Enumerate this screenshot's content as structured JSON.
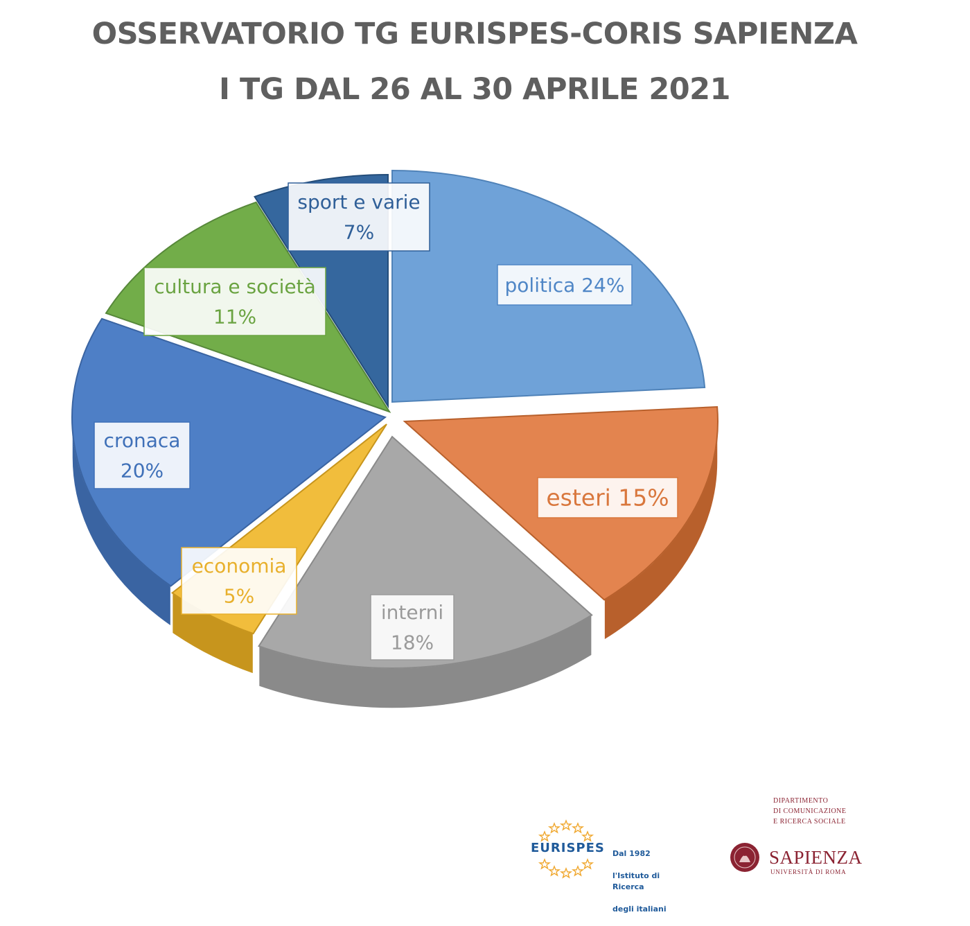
{
  "title": {
    "line1": "OSSERVATORIO TG EURISPES-CORIS SAPIENZA",
    "line2": "I TG DAL 26 AL 30 APRILE 2021"
  },
  "chart_data": {
    "type": "pie",
    "style": "3d-exploded",
    "unit": "%",
    "slices": [
      {
        "label": "politica",
        "value": 24,
        "display": "politica 24%",
        "color": "#6fa2d8",
        "side": "#4f82b8",
        "text_color": "#4f86c6"
      },
      {
        "label": "esteri",
        "value": 15,
        "display": "esteri 15%",
        "color": "#e3844f",
        "side": "#b8602c",
        "text_color": "#d9773d"
      },
      {
        "label": "interni",
        "value": 18,
        "display": "interni\n18%",
        "color": "#a8a8a8",
        "side": "#8a8a8a",
        "text_color": "#9a9a9a"
      },
      {
        "label": "economia",
        "value": 5,
        "display": "economia\n5%",
        "color": "#f1bd3c",
        "side": "#c7951d",
        "text_color": "#e8b02c"
      },
      {
        "label": "cronaca",
        "value": 20,
        "display": "cronaca\n20%",
        "color": "#4e7fc6",
        "side": "#3a64a2",
        "text_color": "#3f70b8"
      },
      {
        "label": "cultura e società",
        "value": 11,
        "display": "cultura e società\n11%",
        "color": "#72ad49",
        "side": "#57883a",
        "text_color": "#6aa341"
      },
      {
        "label": "sport e varie",
        "value": 7,
        "display": "sport e varie\n7%",
        "color": "#35679e",
        "side": "#244d7a",
        "text_color": "#2f5f98"
      }
    ]
  },
  "footer": {
    "eurispes": {
      "name": "EURISPES",
      "tagline_1": "Dal 1982",
      "tagline_2": "l'Istituto di Ricerca",
      "tagline_3": "degli italiani"
    },
    "sapienza": {
      "dept_1": "DIPARTIMENTO",
      "dept_2": "DI COMUNICAZIONE",
      "dept_3": "E RICERCA SOCIALE",
      "name": "SAPIENZA",
      "university": "UNIVERSITÀ DI ROMA"
    }
  }
}
